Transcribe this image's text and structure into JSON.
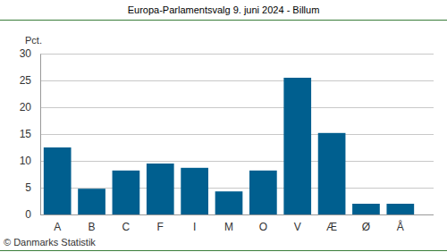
{
  "chart_data": {
    "type": "bar",
    "title": "Europa-Parlamentsvalg 9. juni 2024 - Billum",
    "y_label": "Pct.",
    "annotations": [
      "© Danmarks Statistik"
    ],
    "categories": [
      "A",
      "B",
      "C",
      "F",
      "I",
      "M",
      "O",
      "V",
      "Æ",
      "Ø",
      "Å"
    ],
    "values": [
      12.5,
      4.8,
      8.2,
      9.5,
      8.7,
      4.3,
      8.2,
      25.5,
      15.2,
      2.0,
      2.0
    ],
    "color": "#005f8f",
    "ylim": [
      0,
      30
    ],
    "yticks": [
      0,
      5,
      10,
      15,
      20,
      25,
      30
    ],
    "grid": true
  }
}
